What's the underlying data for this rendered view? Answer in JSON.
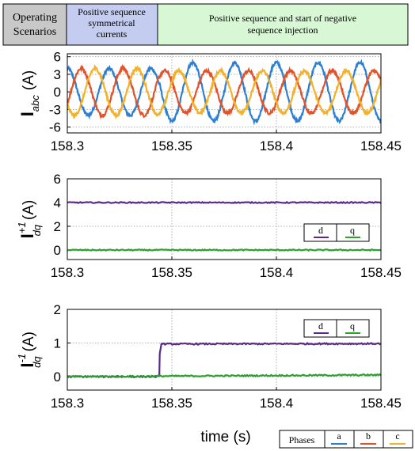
{
  "header": {
    "col1": [
      "Operating",
      "Scenarios"
    ],
    "col2": [
      "Positive sequence",
      "symmetrical",
      "currents"
    ],
    "col3": [
      "Positive sequence and start of  negative",
      "sequence injection"
    ],
    "colors": {
      "col1": "#c8c8c8",
      "col2": "#c4cdf0",
      "col3": "#d8f7d4"
    }
  },
  "legend_dq": {
    "d": "d",
    "q": "q"
  },
  "legend_phases": {
    "title": "Phases",
    "a": "a",
    "b": "b",
    "c": "c"
  },
  "xlabel": "time (s)",
  "colors": {
    "a": "#2f7fd0",
    "b": "#e0532b",
    "c": "#f3b12c",
    "d": "#5b2a8c",
    "q": "#2ea02e"
  },
  "chart_data": [
    {
      "type": "line",
      "ylabel_main": "I",
      "ylabel_sub": "abc",
      "ylabel_unit": "(A)",
      "xlim": [
        158.3,
        158.45
      ],
      "ylim": [
        -7,
        6.5
      ],
      "xticks": [
        "158.3",
        "158.35",
        "158.4",
        "158.45"
      ],
      "yticks": [
        "6",
        "3",
        "0",
        "-3",
        "-6"
      ],
      "grid": true,
      "frequency_hz": 50,
      "series": [
        {
          "name": "a",
          "amp_before": 4.0,
          "amp_after": 5.0,
          "phase_deg": 90
        },
        {
          "name": "b",
          "amp_before": 4.0,
          "amp_after": 3.6,
          "phase_deg": -30
        },
        {
          "name": "c",
          "amp_before": 4.0,
          "amp_after": 3.6,
          "phase_deg": 210
        }
      ],
      "switch_time": 158.344
    },
    {
      "type": "line",
      "ylabel_main": "I",
      "ylabel_sup": "+1",
      "ylabel_sub": "dq",
      "ylabel_unit": "(A)",
      "xlim": [
        158.3,
        158.45
      ],
      "ylim": [
        -0.8,
        6
      ],
      "xticks": [
        "158.3",
        "158.35",
        "158.4",
        "158.45"
      ],
      "yticks": [
        "6",
        "4",
        "2",
        "0"
      ],
      "grid": true,
      "series": [
        {
          "name": "d",
          "x": [
            158.3,
            158.45
          ],
          "y": [
            4.0,
            4.0
          ]
        },
        {
          "name": "q",
          "x": [
            158.3,
            158.45
          ],
          "y": [
            0.0,
            0.0
          ]
        }
      ]
    },
    {
      "type": "line",
      "ylabel_main": "I",
      "ylabel_sup": "-1",
      "ylabel_sub": "dq",
      "ylabel_unit": "(A)",
      "xlim": [
        158.3,
        158.45
      ],
      "ylim": [
        -0.4,
        2
      ],
      "xticks": [
        "158.3",
        "158.35",
        "158.4",
        "158.45"
      ],
      "yticks": [
        "2",
        "1",
        "0"
      ],
      "grid": true,
      "series": [
        {
          "name": "d",
          "x": [
            158.3,
            158.344,
            158.3442,
            158.345,
            158.45
          ],
          "y": [
            0.0,
            0.0,
            0.7,
            0.97,
            0.98
          ]
        },
        {
          "name": "q",
          "x": [
            158.3,
            158.45
          ],
          "y": [
            0.0,
            0.05
          ]
        }
      ]
    }
  ]
}
